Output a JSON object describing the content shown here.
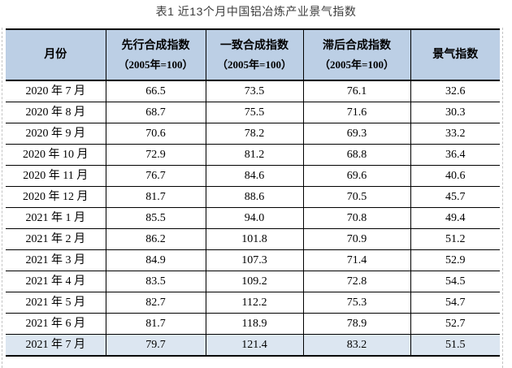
{
  "title": "表1 近13个月中国铝冶炼产业景气指数",
  "table": {
    "columns": [
      {
        "label": "月份",
        "sub": ""
      },
      {
        "label": "先行合成指数",
        "sub": "（2005年=100）"
      },
      {
        "label": "一致合成指数",
        "sub": "（2005年=100）"
      },
      {
        "label": "滞后合成指数",
        "sub": "（2005年=100）"
      },
      {
        "label": "景气指数",
        "sub": ""
      }
    ],
    "rows": [
      {
        "month": "2020 年 7 月",
        "values": [
          "66.5",
          "73.5",
          "76.1",
          "32.6"
        ]
      },
      {
        "month": "2020 年 8 月",
        "values": [
          "68.7",
          "75.5",
          "71.6",
          "30.3"
        ]
      },
      {
        "month": "2020 年 9 月",
        "values": [
          "70.6",
          "78.2",
          "69.3",
          "33.2"
        ]
      },
      {
        "month": "2020 年 10 月",
        "values": [
          "72.9",
          "81.2",
          "68.8",
          "36.4"
        ]
      },
      {
        "month": "2020 年 11 月",
        "values": [
          "76.7",
          "84.6",
          "69.6",
          "40.6"
        ]
      },
      {
        "month": "2020 年 12 月",
        "values": [
          "81.7",
          "88.6",
          "70.5",
          "45.7"
        ]
      },
      {
        "month": "2021 年 1 月",
        "values": [
          "85.5",
          "94.0",
          "70.8",
          "49.4"
        ]
      },
      {
        "month": "2021 年 2 月",
        "values": [
          "86.2",
          "101.8",
          "70.9",
          "51.2"
        ]
      },
      {
        "month": "2021 年 3 月",
        "values": [
          "84.9",
          "107.3",
          "71.4",
          "52.9"
        ]
      },
      {
        "month": "2021 年 4 月",
        "values": [
          "83.5",
          "109.2",
          "72.8",
          "54.5"
        ]
      },
      {
        "month": "2021 年 5 月",
        "values": [
          "82.7",
          "112.2",
          "75.3",
          "54.7"
        ]
      },
      {
        "month": "2021 年 6 月",
        "values": [
          "81.7",
          "118.9",
          "78.9",
          "52.7"
        ]
      },
      {
        "month": "2021 年 7 月",
        "values": [
          "79.7",
          "121.4",
          "83.2",
          "51.5"
        ]
      }
    ],
    "highlight_last_row": true
  },
  "colors": {
    "header_bg": "#bccfe5",
    "highlight_bg": "#dce6f1",
    "border": "#000000",
    "boundary_dash": "#c3c3c3"
  }
}
